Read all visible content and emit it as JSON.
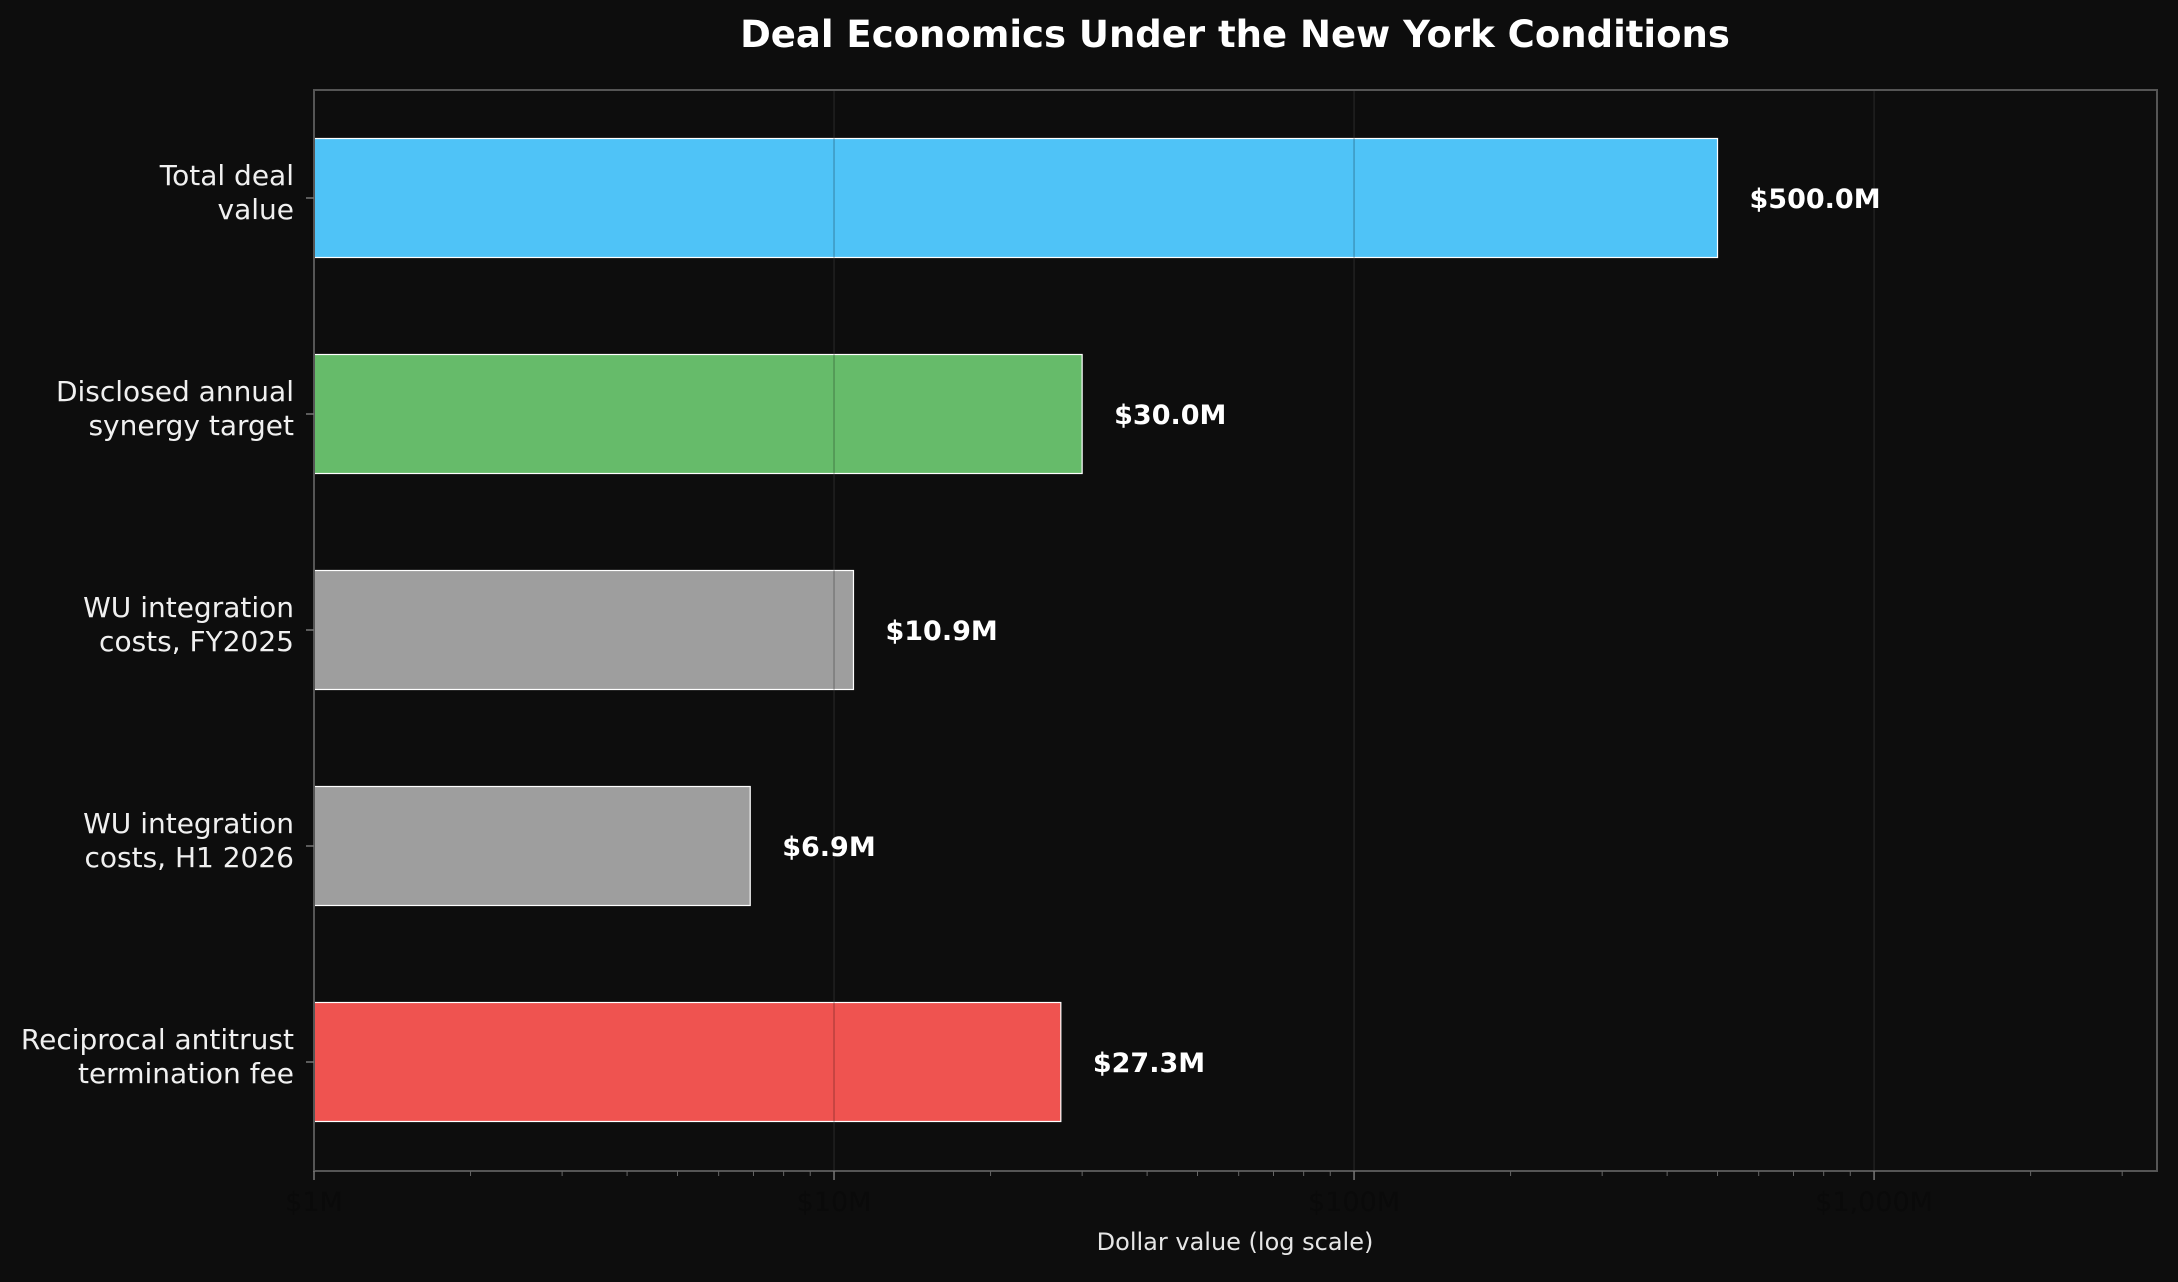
{
  "chart_data": {
    "type": "bar",
    "orientation": "horizontal",
    "title": "Deal Economics Under the New York Conditions",
    "xlabel": "Dollar value (log scale)",
    "ylabel": "",
    "x_scale": "log",
    "xlim": [
      1,
      3500
    ],
    "x_unit": "millions of dollars",
    "x_ticks": [
      {
        "value": 1,
        "label": "$1M"
      },
      {
        "value": 10,
        "label": "$10M"
      },
      {
        "value": 100,
        "label": "$100M"
      },
      {
        "value": 1000,
        "label": "$1,000M"
      }
    ],
    "grid": true,
    "categories": [
      [
        "Total deal",
        "value"
      ],
      [
        "Disclosed annual",
        "synergy target"
      ],
      [
        "WU integration",
        "costs, FY2025"
      ],
      [
        "WU integration",
        "costs, H1 2026"
      ],
      [
        "Reciprocal antitrust",
        "termination fee"
      ]
    ],
    "values": [
      500.0,
      30.0,
      10.9,
      6.9,
      27.3
    ],
    "data_labels": [
      "$500.0M",
      "$30.0M",
      "$10.9M",
      "$6.9M",
      "$27.3M"
    ],
    "colors": [
      "#4fc3f7",
      "#66bb6a",
      "#9e9e9e",
      "#9e9e9e",
      "#ef5350"
    ],
    "theme": {
      "background": "#0d0d0d",
      "frame": "#555555",
      "grid": "#333333",
      "bar_edge": "#ffffff"
    }
  }
}
